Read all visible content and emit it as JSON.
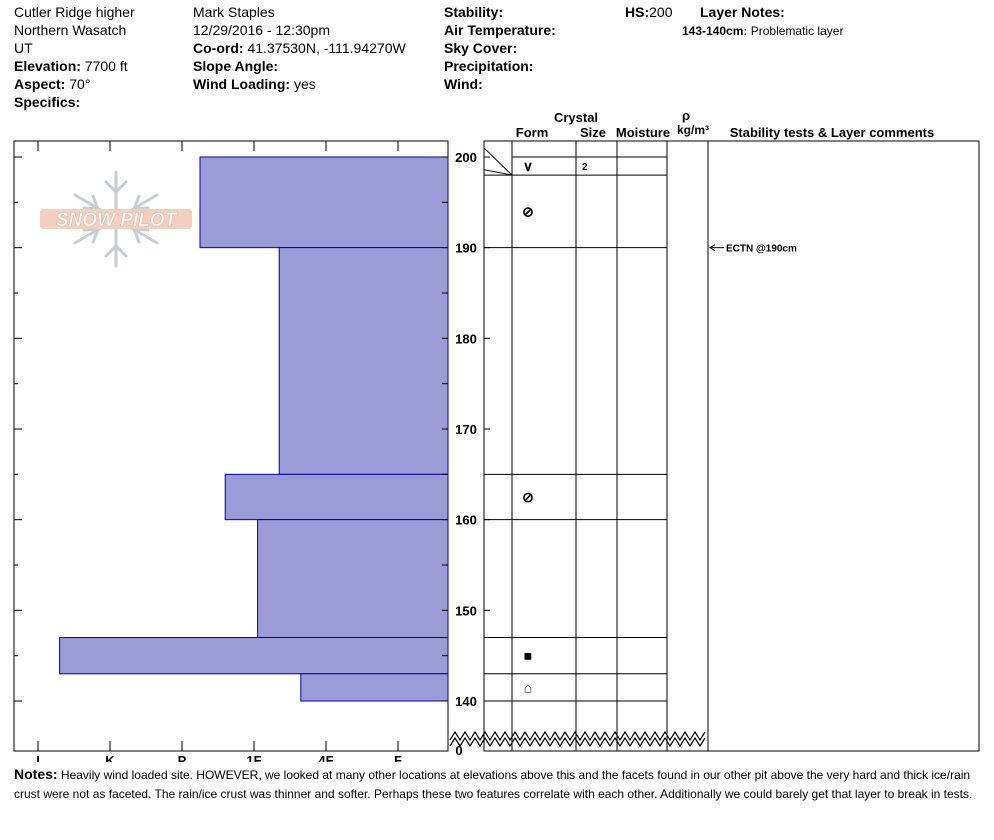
{
  "site": {
    "name": "Cutler Ridge higher",
    "range": "Northern Wasatch",
    "state": "UT",
    "elevation_label": "Elevation:",
    "elevation": "7700 ft",
    "aspect_label": "Aspect:",
    "aspect": "70°",
    "specifics_label": "Specifics:"
  },
  "observer": {
    "name": "Mark Staples",
    "datetime": "12/29/2016 - 12:30pm",
    "coord_label": "Co-ord:",
    "coord": "41.37530N, -111.94270W",
    "slope_label": "Slope Angle:",
    "wind_loading_label": "Wind Loading:",
    "wind_loading": "yes"
  },
  "conditions": {
    "stability_label": "Stability:",
    "air_temp_label": "Air Temperature:",
    "sky_label": "Sky Cover:",
    "precip_label": "Precipitation:",
    "wind_label": "Wind:"
  },
  "hs": {
    "label": "HS:",
    "value": "200"
  },
  "layer_notes": {
    "title": "Layer Notes:",
    "range": "143-140cm:",
    "text": "Problematic layer"
  },
  "table_headers": {
    "crystal": "Crystal",
    "form": "Form",
    "size": "Size",
    "moisture": "Moisture",
    "rho": "ρ",
    "density_unit": "kg/m³",
    "stability": "Stability tests & Layer comments"
  },
  "logo_text": "SNOW PILOT",
  "notes": {
    "label": "Notes:",
    "text": "Heavily wind loaded site. HOWEVER, we looked at many other locations at elevations above this and the facets found in our other pit above the very hard and thick ice/rain crust were not as faceted. The rain/ice crust was thinner and softer. Perhaps these two features correlate with each other. Additionally we could barely get that layer to break in tests."
  },
  "colors": {
    "bar_fill": "#9b9bd7",
    "bar_stroke": "#0000aa"
  },
  "chart_data": {
    "type": "bar",
    "orientation": "horizontal",
    "ylim": [
      136,
      201
    ],
    "yticks": [
      200,
      190,
      180,
      170,
      160,
      150,
      140
    ],
    "y_break_label": "0",
    "hardness_scale": [
      "I",
      "K",
      "P",
      "1F",
      "4F",
      "F"
    ],
    "hardness_ticks_value": [
      5,
      4,
      3,
      2,
      1,
      0
    ],
    "layers": [
      {
        "top": 200,
        "bottom": 190,
        "hardness": 2.75
      },
      {
        "top": 190,
        "bottom": 165,
        "hardness": 1.65
      },
      {
        "top": 165,
        "bottom": 160,
        "hardness": 2.4
      },
      {
        "top": 160,
        "bottom": 147,
        "hardness": 1.95
      },
      {
        "top": 147,
        "bottom": 143,
        "hardness": 4.7
      },
      {
        "top": 143,
        "bottom": 140,
        "hardness": 1.35
      }
    ],
    "layer_boundaries": [
      200,
      198,
      190,
      165,
      160,
      147,
      143,
      140
    ],
    "crystal_forms": [
      {
        "depth": 199,
        "symbol": "∨",
        "size": "2"
      },
      {
        "depth": 194,
        "symbol": "⊘"
      },
      {
        "depth": 162.5,
        "symbol": "⊘"
      },
      {
        "depth": 145,
        "symbol": "■"
      },
      {
        "depth": 141.5,
        "symbol": "⌂"
      }
    ],
    "stability_tests": [
      {
        "depth": 190,
        "label": "ECTN @190cm"
      }
    ]
  }
}
